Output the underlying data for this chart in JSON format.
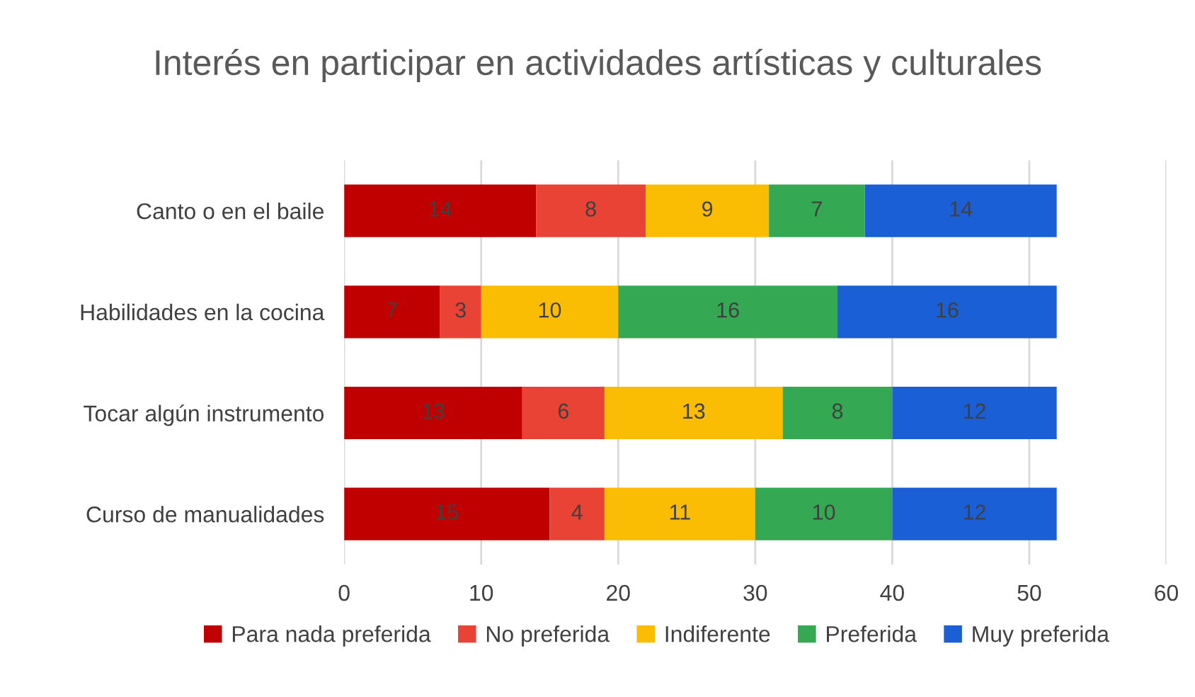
{
  "chart_data": {
    "type": "bar",
    "orientation": "horizontal",
    "stacked": true,
    "title": "Interés en participar en actividades artísticas y culturales",
    "categories": [
      "Canto o en el baile",
      "Habilidades en la cocina",
      "Tocar algún instrumento",
      "Curso de manualidades"
    ],
    "series": [
      {
        "name": "Para nada preferida",
        "color": "#c00000",
        "values": [
          14,
          7,
          13,
          15
        ]
      },
      {
        "name": "No preferida",
        "color": "#e84335",
        "values": [
          8,
          3,
          6,
          4
        ]
      },
      {
        "name": "Indiferente",
        "color": "#fbbc04",
        "values": [
          9,
          10,
          13,
          11
        ]
      },
      {
        "name": "Preferida",
        "color": "#34a853",
        "values": [
          7,
          16,
          8,
          10
        ]
      },
      {
        "name": "Muy preferida",
        "color": "#1a5fd6",
        "values": [
          14,
          16,
          12,
          12
        ]
      }
    ],
    "xlim": [
      0,
      60
    ],
    "xticks": [
      0,
      10,
      20,
      30,
      40,
      50,
      60
    ],
    "grid": "x",
    "legend": "bottom",
    "data_labels": true
  }
}
